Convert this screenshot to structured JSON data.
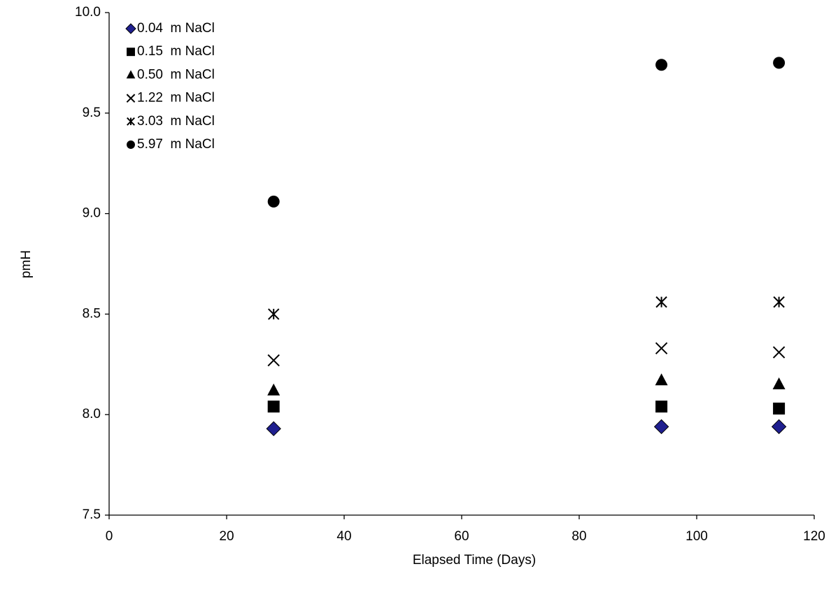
{
  "chart_data": {
    "type": "scatter",
    "x_label": "Elapsed Time (Days)",
    "y_label": "pmH",
    "xlim": [
      0,
      120
    ],
    "xticks": [
      0,
      20,
      40,
      60,
      80,
      100,
      120
    ],
    "ylim": [
      7.5,
      10
    ],
    "yticks": [
      7.5,
      {
        "value": 8,
        "label": "8.0"
      },
      8.5,
      {
        "value": 9,
        "label": "9.0"
      },
      9.5,
      {
        "value": 10,
        "label": "10.0"
      }
    ],
    "grid": false,
    "legend": "top-left",
    "series": [
      {
        "name": "0.04  m NaCl",
        "color": "#1f1f8f",
        "marker": "diamond",
        "x": [
          28,
          94,
          114
        ],
        "values": [
          7.93,
          7.94,
          7.94
        ]
      },
      {
        "name": "0.15  m NaCl",
        "color": "#000000",
        "marker": "square",
        "x": [
          28,
          94,
          114
        ],
        "values": [
          8.04,
          8.04,
          8.03
        ]
      },
      {
        "name": "0.50  m NaCl",
        "color": "#000000",
        "marker": "triangle",
        "x": [
          28,
          94,
          114
        ],
        "values": [
          8.12,
          8.17,
          8.15
        ]
      },
      {
        "name": "1.22  m NaCl",
        "color": "#000000",
        "marker": "x",
        "x": [
          28,
          94,
          114
        ],
        "values": [
          8.27,
          8.33,
          8.31
        ]
      },
      {
        "name": "3.03  m NaCl",
        "color": "#000000",
        "marker": "star",
        "x": [
          28,
          94,
          114
        ],
        "values": [
          8.5,
          8.56,
          8.56
        ]
      },
      {
        "name": "5.97  m NaCl",
        "color": "#000000",
        "marker": "circle",
        "x": [
          28,
          94,
          114
        ],
        "values": [
          9.06,
          9.74,
          9.75
        ]
      }
    ]
  }
}
